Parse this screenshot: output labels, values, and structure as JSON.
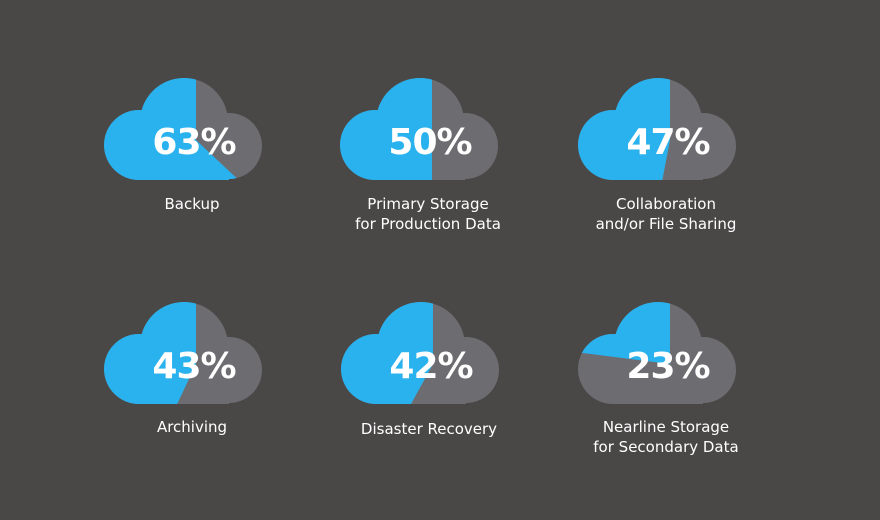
{
  "chart_data": {
    "type": "pie",
    "series_colors": {
      "share": "#29b2ee",
      "remainder": "#6d6c70",
      "background": "#4a4747"
    },
    "items": [
      {
        "value": 63,
        "label": "63%",
        "caption": [
          "Backup"
        ]
      },
      {
        "value": 50,
        "label": "50%",
        "caption": [
          "Primary Storage",
          "for Production Data"
        ]
      },
      {
        "value": 47,
        "label": "47%",
        "caption": [
          "Collaboration",
          "and/or File Sharing"
        ]
      },
      {
        "value": 43,
        "label": "43%",
        "caption": [
          "Archiving"
        ]
      },
      {
        "value": 42,
        "label": "42%",
        "caption": [
          "Disaster Recovery"
        ]
      },
      {
        "value": 23,
        "label": "23%",
        "caption": [
          "Nearline Storage",
          "for Secondary Data"
        ]
      }
    ]
  }
}
